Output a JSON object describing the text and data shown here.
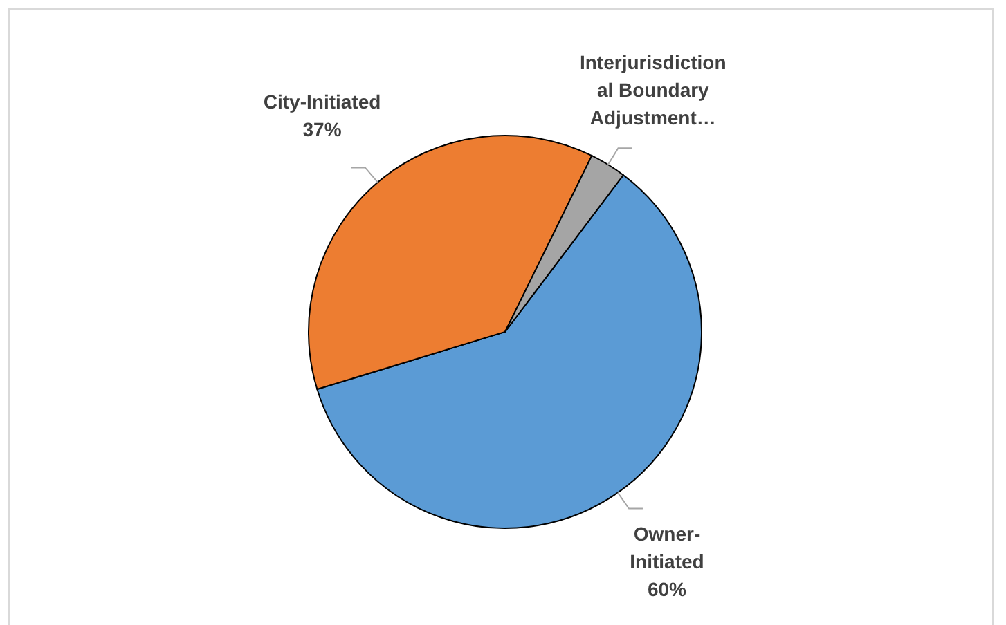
{
  "chart_data": {
    "type": "pie",
    "categories": [
      "Owner-Initiated",
      "City-Initiated",
      "Interjurisdictional Boundary Adjustment…"
    ],
    "values": [
      60,
      37,
      3
    ],
    "colors": [
      "#5b9bd5",
      "#ed7d31",
      "#a5a5a5"
    ],
    "value_labels": [
      "60%",
      "37%",
      null
    ],
    "legend": false
  }
}
